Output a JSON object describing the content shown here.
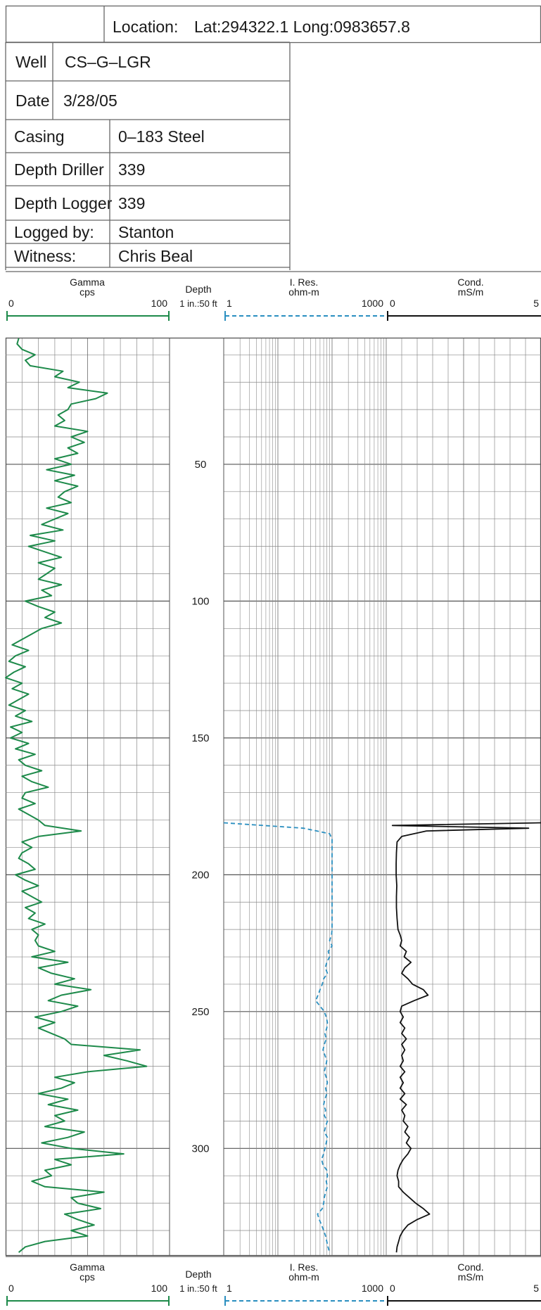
{
  "header": {
    "location_label": "Location:",
    "location_value": "Lat:294322.1 Long:0983657.8",
    "well_label": "Well",
    "well_value": "CS–G–LGR",
    "date_label": "Date",
    "date_value": "3/28/05",
    "casing_label": "Casing",
    "casing_value": "0–183 Steel",
    "depth_driller_label": "Depth Driller",
    "depth_driller_value": "339",
    "depth_logger_label": "Depth Logger",
    "depth_logger_value": "339",
    "logged_by_label": "Logged by:",
    "logged_by_value": "Stanton",
    "witness_label": "Witness:",
    "witness_value": "Chris Beal"
  },
  "scale_header": {
    "gamma_title": "Gamma",
    "gamma_unit": "cps",
    "gamma_min": "0",
    "gamma_max": "100",
    "depth_title": "Depth",
    "depth_scale": "1 in.:50 ft",
    "res_title": "I. Res.",
    "res_unit": "ohm-m",
    "res_min": "1",
    "res_max": "1000",
    "cond_title": "Cond.",
    "cond_unit": "mS/m",
    "cond_min": "0",
    "cond_max": "5"
  },
  "colors": {
    "gamma": "#1d8a4a",
    "resistivity": "#2a8fc0",
    "conductivity": "#111111",
    "grid_major": "#555555",
    "grid_minor": "#8a8a8a"
  },
  "chart_data": {
    "type": "line",
    "y_axis": {
      "label": "Depth",
      "unit": "ft",
      "range": [
        4,
        339
      ],
      "inverted": true,
      "ticks": [
        50,
        100,
        150,
        200,
        250,
        300
      ]
    },
    "series": [
      {
        "name": "Gamma",
        "unit": "cps",
        "range": [
          0,
          100
        ],
        "scale": "linear",
        "style": "solid",
        "points": [
          [
            4,
            8
          ],
          [
            6,
            7
          ],
          [
            8,
            10
          ],
          [
            10,
            18
          ],
          [
            12,
            12
          ],
          [
            14,
            15
          ],
          [
            16,
            35
          ],
          [
            18,
            30
          ],
          [
            20,
            45
          ],
          [
            22,
            38
          ],
          [
            24,
            62
          ],
          [
            26,
            55
          ],
          [
            28,
            40
          ],
          [
            30,
            38
          ],
          [
            32,
            32
          ],
          [
            34,
            36
          ],
          [
            36,
            30
          ],
          [
            38,
            50
          ],
          [
            40,
            40
          ],
          [
            42,
            48
          ],
          [
            44,
            38
          ],
          [
            46,
            44
          ],
          [
            48,
            30
          ],
          [
            50,
            40
          ],
          [
            52,
            25
          ],
          [
            54,
            42
          ],
          [
            56,
            30
          ],
          [
            58,
            44
          ],
          [
            60,
            36
          ],
          [
            62,
            32
          ],
          [
            64,
            40
          ],
          [
            66,
            25
          ],
          [
            68,
            38
          ],
          [
            70,
            30
          ],
          [
            72,
            22
          ],
          [
            74,
            35
          ],
          [
            76,
            15
          ],
          [
            78,
            30
          ],
          [
            80,
            14
          ],
          [
            82,
            24
          ],
          [
            84,
            34
          ],
          [
            86,
            20
          ],
          [
            88,
            30
          ],
          [
            90,
            25
          ],
          [
            92,
            20
          ],
          [
            94,
            34
          ],
          [
            96,
            22
          ],
          [
            98,
            28
          ],
          [
            100,
            12
          ],
          [
            102,
            20
          ],
          [
            104,
            30
          ],
          [
            106,
            24
          ],
          [
            108,
            34
          ],
          [
            110,
            22
          ],
          [
            112,
            16
          ],
          [
            114,
            10
          ],
          [
            116,
            4
          ],
          [
            118,
            14
          ],
          [
            120,
            6
          ],
          [
            122,
            2
          ],
          [
            124,
            12
          ],
          [
            126,
            5
          ],
          [
            128,
            0
          ],
          [
            130,
            10
          ],
          [
            132,
            4
          ],
          [
            134,
            14
          ],
          [
            136,
            8
          ],
          [
            138,
            2
          ],
          [
            140,
            12
          ],
          [
            142,
            6
          ],
          [
            144,
            16
          ],
          [
            146,
            3
          ],
          [
            148,
            10
          ],
          [
            150,
            3
          ],
          [
            152,
            14
          ],
          [
            154,
            6
          ],
          [
            156,
            18
          ],
          [
            158,
            8
          ],
          [
            160,
            12
          ],
          [
            162,
            22
          ],
          [
            164,
            10
          ],
          [
            166,
            16
          ],
          [
            168,
            26
          ],
          [
            170,
            12
          ],
          [
            172,
            10
          ],
          [
            174,
            18
          ],
          [
            176,
            8
          ],
          [
            178,
            14
          ],
          [
            180,
            20
          ],
          [
            182,
            24
          ],
          [
            184,
            46
          ],
          [
            186,
            20
          ],
          [
            188,
            10
          ],
          [
            190,
            16
          ],
          [
            192,
            10
          ],
          [
            194,
            8
          ],
          [
            196,
            14
          ],
          [
            198,
            18
          ],
          [
            200,
            6
          ],
          [
            202,
            12
          ],
          [
            204,
            20
          ],
          [
            206,
            10
          ],
          [
            208,
            16
          ],
          [
            210,
            22
          ],
          [
            212,
            12
          ],
          [
            214,
            18
          ],
          [
            216,
            14
          ],
          [
            218,
            24
          ],
          [
            220,
            16
          ],
          [
            222,
            20
          ],
          [
            224,
            18
          ],
          [
            226,
            20
          ],
          [
            228,
            30
          ],
          [
            230,
            16
          ],
          [
            232,
            38
          ],
          [
            234,
            20
          ],
          [
            236,
            28
          ],
          [
            238,
            42
          ],
          [
            240,
            30
          ],
          [
            242,
            52
          ],
          [
            244,
            34
          ],
          [
            246,
            26
          ],
          [
            248,
            44
          ],
          [
            250,
            34
          ],
          [
            252,
            18
          ],
          [
            254,
            30
          ],
          [
            256,
            20
          ],
          [
            258,
            28
          ],
          [
            260,
            36
          ],
          [
            262,
            40
          ],
          [
            264,
            82
          ],
          [
            266,
            60
          ],
          [
            268,
            74
          ],
          [
            270,
            86
          ],
          [
            272,
            50
          ],
          [
            274,
            30
          ],
          [
            276,
            42
          ],
          [
            278,
            34
          ],
          [
            280,
            20
          ],
          [
            282,
            38
          ],
          [
            284,
            26
          ],
          [
            286,
            44
          ],
          [
            288,
            30
          ],
          [
            290,
            36
          ],
          [
            292,
            24
          ],
          [
            294,
            48
          ],
          [
            296,
            38
          ],
          [
            298,
            22
          ],
          [
            300,
            40
          ],
          [
            302,
            72
          ],
          [
            304,
            30
          ],
          [
            306,
            40
          ],
          [
            308,
            24
          ],
          [
            310,
            28
          ],
          [
            312,
            16
          ],
          [
            314,
            24
          ],
          [
            316,
            60
          ],
          [
            318,
            40
          ],
          [
            320,
            44
          ],
          [
            322,
            58
          ],
          [
            324,
            36
          ],
          [
            326,
            44
          ],
          [
            328,
            54
          ],
          [
            330,
            40
          ],
          [
            332,
            50
          ],
          [
            334,
            24
          ],
          [
            336,
            12
          ],
          [
            338,
            8
          ]
        ]
      },
      {
        "name": "I. Res.",
        "unit": "ohm-m",
        "range": [
          1,
          1000
        ],
        "scale": "log",
        "style": "dashed",
        "points": [
          [
            181,
            1.0
          ],
          [
            183,
            30
          ],
          [
            185,
            90
          ],
          [
            187,
            100
          ],
          [
            190,
            100
          ],
          [
            195,
            100
          ],
          [
            200,
            100
          ],
          [
            205,
            100
          ],
          [
            210,
            100
          ],
          [
            215,
            100
          ],
          [
            220,
            100
          ],
          [
            222,
            98
          ],
          [
            224,
            90
          ],
          [
            226,
            100
          ],
          [
            228,
            85
          ],
          [
            230,
            90
          ],
          [
            232,
            80
          ],
          [
            234,
            75
          ],
          [
            236,
            82
          ],
          [
            238,
            70
          ],
          [
            240,
            66
          ],
          [
            242,
            60
          ],
          [
            244,
            55
          ],
          [
            246,
            50
          ],
          [
            248,
            60
          ],
          [
            250,
            72
          ],
          [
            252,
            78
          ],
          [
            254,
            82
          ],
          [
            256,
            80
          ],
          [
            258,
            74
          ],
          [
            260,
            78
          ],
          [
            262,
            72
          ],
          [
            264,
            68
          ],
          [
            266,
            74
          ],
          [
            268,
            80
          ],
          [
            270,
            76
          ],
          [
            272,
            72
          ],
          [
            274,
            78
          ],
          [
            276,
            82
          ],
          [
            278,
            76
          ],
          [
            280,
            80
          ],
          [
            282,
            74
          ],
          [
            284,
            70
          ],
          [
            286,
            76
          ],
          [
            288,
            72
          ],
          [
            290,
            82
          ],
          [
            292,
            76
          ],
          [
            294,
            72
          ],
          [
            296,
            82
          ],
          [
            298,
            78
          ],
          [
            300,
            74
          ],
          [
            302,
            70
          ],
          [
            304,
            64
          ],
          [
            306,
            68
          ],
          [
            308,
            80
          ],
          [
            310,
            82
          ],
          [
            312,
            78
          ],
          [
            314,
            82
          ],
          [
            316,
            76
          ],
          [
            318,
            72
          ],
          [
            320,
            70
          ],
          [
            322,
            66
          ],
          [
            324,
            54
          ],
          [
            326,
            58
          ],
          [
            328,
            64
          ],
          [
            330,
            70
          ],
          [
            332,
            76
          ],
          [
            334,
            80
          ],
          [
            336,
            84
          ],
          [
            338,
            90
          ]
        ]
      },
      {
        "name": "Cond.",
        "unit": "mS/m",
        "range": [
          0,
          5
        ],
        "scale": "linear",
        "style": "solid",
        "points": [
          [
            181,
            5.0
          ],
          [
            182,
            0.2
          ],
          [
            183,
            4.6
          ],
          [
            184,
            1.3
          ],
          [
            186,
            0.5
          ],
          [
            188,
            0.35
          ],
          [
            192,
            0.33
          ],
          [
            196,
            0.32
          ],
          [
            200,
            0.32
          ],
          [
            204,
            0.34
          ],
          [
            208,
            0.33
          ],
          [
            212,
            0.33
          ],
          [
            216,
            0.35
          ],
          [
            220,
            0.38
          ],
          [
            222,
            0.45
          ],
          [
            224,
            0.5
          ],
          [
            226,
            0.45
          ],
          [
            228,
            0.65
          ],
          [
            230,
            0.58
          ],
          [
            232,
            0.8
          ],
          [
            234,
            0.6
          ],
          [
            236,
            0.5
          ],
          [
            238,
            0.7
          ],
          [
            240,
            0.85
          ],
          [
            242,
            1.2
          ],
          [
            244,
            1.35
          ],
          [
            246,
            0.9
          ],
          [
            248,
            0.5
          ],
          [
            250,
            0.45
          ],
          [
            252,
            0.55
          ],
          [
            254,
            0.45
          ],
          [
            256,
            0.6
          ],
          [
            258,
            0.5
          ],
          [
            260,
            0.65
          ],
          [
            262,
            0.5
          ],
          [
            264,
            0.6
          ],
          [
            266,
            0.5
          ],
          [
            268,
            0.55
          ],
          [
            270,
            0.45
          ],
          [
            272,
            0.6
          ],
          [
            274,
            0.45
          ],
          [
            276,
            0.55
          ],
          [
            278,
            0.45
          ],
          [
            280,
            0.6
          ],
          [
            282,
            0.45
          ],
          [
            284,
            0.65
          ],
          [
            286,
            0.5
          ],
          [
            288,
            0.6
          ],
          [
            290,
            0.55
          ],
          [
            292,
            0.7
          ],
          [
            294,
            0.6
          ],
          [
            296,
            0.75
          ],
          [
            298,
            0.65
          ],
          [
            300,
            0.8
          ],
          [
            302,
            0.7
          ],
          [
            304,
            0.55
          ],
          [
            306,
            0.45
          ],
          [
            308,
            0.38
          ],
          [
            310,
            0.35
          ],
          [
            312,
            0.4
          ],
          [
            314,
            0.4
          ],
          [
            316,
            0.55
          ],
          [
            318,
            0.75
          ],
          [
            320,
            0.95
          ],
          [
            322,
            1.2
          ],
          [
            324,
            1.4
          ],
          [
            326,
            1.0
          ],
          [
            328,
            0.7
          ],
          [
            330,
            0.55
          ],
          [
            332,
            0.45
          ],
          [
            334,
            0.4
          ],
          [
            336,
            0.35
          ],
          [
            338,
            0.33
          ]
        ]
      }
    ]
  }
}
